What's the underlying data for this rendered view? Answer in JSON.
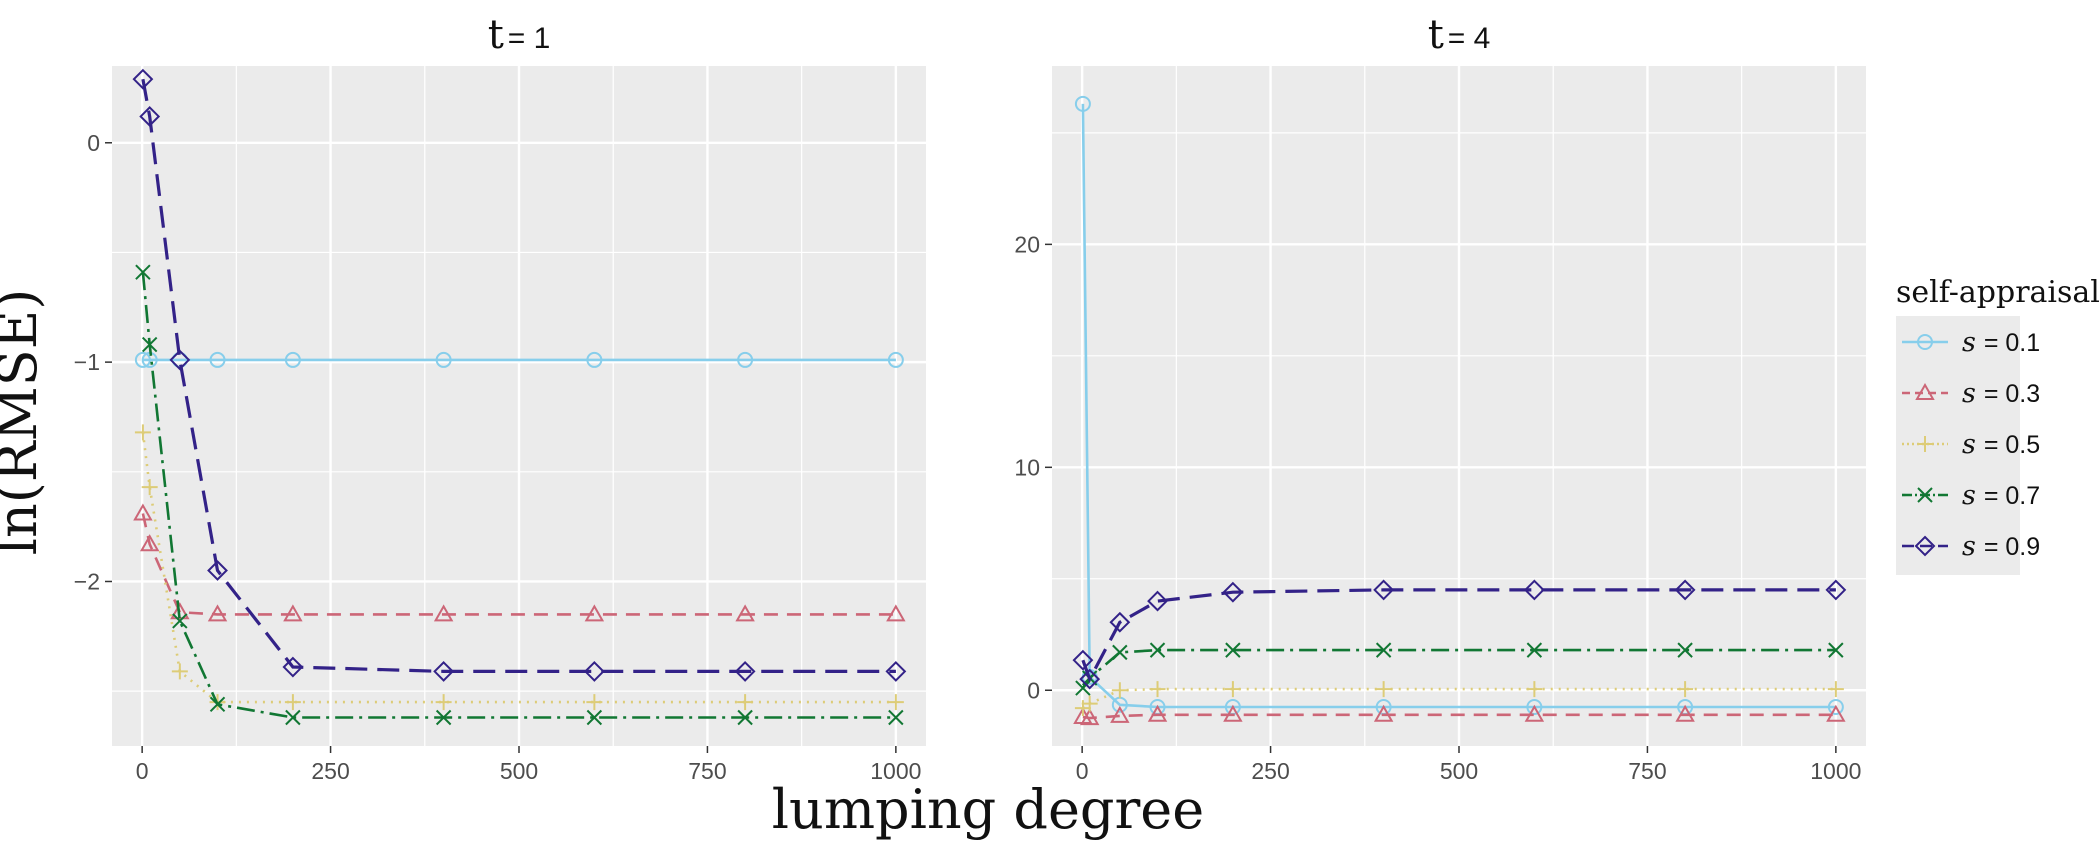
{
  "figure": {
    "xlabel": "lumping degree",
    "ylabel": "ln(RMSE)",
    "legend_title": "self-appraisal"
  },
  "chart_data": [
    {
      "type": "line",
      "panel_title": "t = 1",
      "xlabel": "lumping degree",
      "ylabel": "ln(RMSE)",
      "xlim": [
        -40,
        1040
      ],
      "ylim": [
        -2.75,
        0.35
      ],
      "xticks": [
        0,
        250,
        500,
        750,
        1000
      ],
      "yticks": [
        -2,
        -1,
        0
      ],
      "x": [
        1,
        10,
        50,
        100,
        200,
        400,
        600,
        800,
        1000
      ],
      "series": [
        {
          "name": "s = 0.1",
          "color": "#87ceeb",
          "marker": "circle",
          "dash": "",
          "values": [
            -0.99,
            -0.99,
            -0.99,
            -0.99,
            -0.99,
            -0.99,
            -0.99,
            -0.99,
            -0.99
          ]
        },
        {
          "name": "s = 0.3",
          "color": "#cc6677",
          "marker": "triangle",
          "dash": "14 9",
          "values": [
            -1.69,
            -1.83,
            -2.14,
            -2.15,
            -2.15,
            -2.15,
            -2.15,
            -2.15,
            -2.15
          ]
        },
        {
          "name": "s = 0.5",
          "color": "#ddcc77",
          "marker": "plus",
          "dash": "2 6",
          "values": [
            -1.32,
            -1.57,
            -2.41,
            -2.55,
            -2.55,
            -2.55,
            -2.55,
            -2.55,
            -2.55
          ]
        },
        {
          "name": "s = 0.7",
          "color": "#117733",
          "marker": "x",
          "dash": "18 6 3 6",
          "values": [
            -0.59,
            -0.92,
            -2.18,
            -2.56,
            -2.62,
            -2.62,
            -2.62,
            -2.62,
            -2.62
          ]
        },
        {
          "name": "s = 0.9",
          "color": "#332288",
          "marker": "diamond",
          "dash": "22 10",
          "values": [
            0.29,
            0.12,
            -0.99,
            -1.95,
            -2.39,
            -2.41,
            -2.41,
            -2.41,
            -2.41
          ]
        }
      ],
      "grid": true
    },
    {
      "type": "line",
      "panel_title": "t = 4",
      "xlabel": "lumping degree",
      "ylabel": "ln(RMSE)",
      "xlim": [
        -40,
        1040
      ],
      "ylim": [
        -2.5,
        28
      ],
      "xticks": [
        0,
        250,
        500,
        750,
        1000
      ],
      "yticks": [
        0,
        10,
        20
      ],
      "x": [
        1,
        10,
        50,
        100,
        200,
        400,
        600,
        800,
        1000
      ],
      "series": [
        {
          "name": "s = 0.1",
          "color": "#87ceeb",
          "marker": "circle",
          "dash": "",
          "values": [
            26.3,
            0.6,
            -0.65,
            -0.75,
            -0.75,
            -0.75,
            -0.75,
            -0.75,
            -0.75
          ]
        },
        {
          "name": "s = 0.3",
          "color": "#cc6677",
          "marker": "triangle",
          "dash": "14 9",
          "values": [
            -1.2,
            -1.25,
            -1.15,
            -1.1,
            -1.1,
            -1.1,
            -1.1,
            -1.1,
            -1.1
          ]
        },
        {
          "name": "s = 0.5",
          "color": "#ddcc77",
          "marker": "plus",
          "dash": "2 6",
          "values": [
            -0.8,
            -0.6,
            0.0,
            0.05,
            0.05,
            0.05,
            0.05,
            0.05,
            0.05
          ]
        },
        {
          "name": "s = 0.7",
          "color": "#117733",
          "marker": "x",
          "dash": "18 6 3 6",
          "values": [
            0.1,
            0.55,
            1.7,
            1.8,
            1.8,
            1.8,
            1.8,
            1.8,
            1.8
          ]
        },
        {
          "name": "s = 0.9",
          "color": "#332288",
          "marker": "diamond",
          "dash": "22 10",
          "values": [
            1.35,
            0.5,
            3.05,
            4.0,
            4.4,
            4.5,
            4.5,
            4.5,
            4.5
          ]
        }
      ],
      "grid": true
    }
  ],
  "legend": {
    "title": "self-appraisal",
    "placement": "right",
    "items": [
      {
        "var": "s",
        "value": "= 0.1"
      },
      {
        "var": "s",
        "value": "= 0.3"
      },
      {
        "var": "s",
        "value": "= 0.5"
      },
      {
        "var": "s",
        "value": "= 0.7"
      },
      {
        "var": "s",
        "value": "= 0.9"
      }
    ]
  },
  "colors": {
    "panel_bg": "#ebebeb",
    "grid": "#ffffff"
  }
}
